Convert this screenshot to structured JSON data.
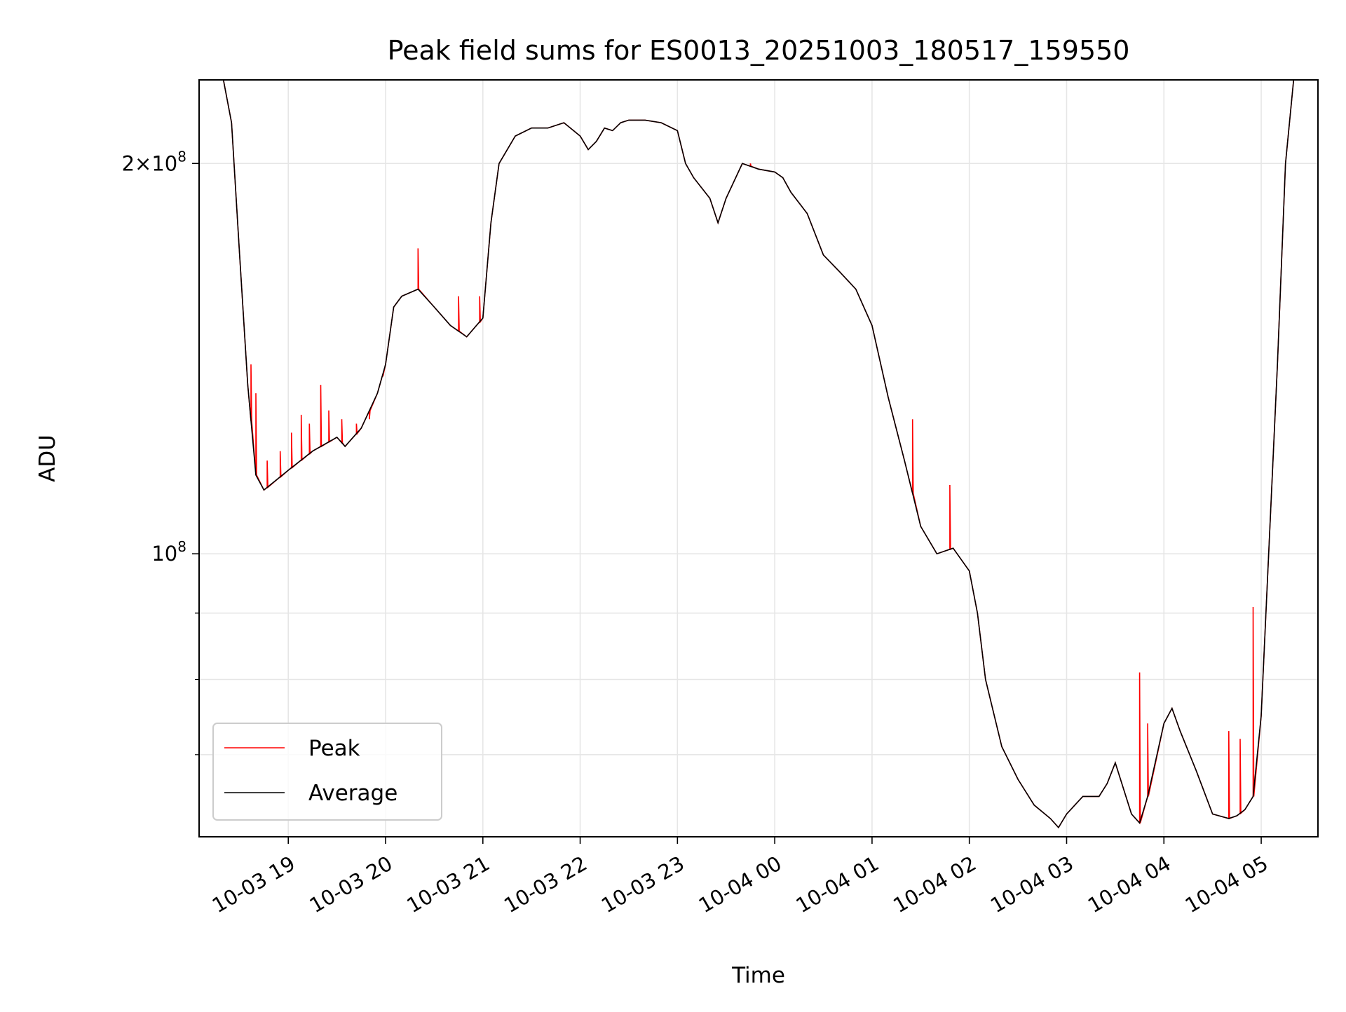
{
  "chart_data": {
    "type": "line",
    "title": "Peak field sums for ES0013_20251003_180517_159550",
    "xlabel": "Time",
    "ylabel": "ADU",
    "yscale": "log",
    "xlim": [
      "2025-10-03 18:05",
      "2025-10-04 05:35"
    ],
    "ylim": [
      60500000,
      232000000
    ],
    "grid": true,
    "legend_position": "lower-left",
    "x_ticks": [
      "2025-10-03 19:00",
      "2025-10-03 20:00",
      "2025-10-03 21:00",
      "2025-10-03 22:00",
      "2025-10-03 23:00",
      "2025-10-04 00:00",
      "2025-10-04 01:00",
      "2025-10-04 02:00",
      "2025-10-04 03:00",
      "2025-10-04 04:00",
      "2025-10-04 05:00"
    ],
    "x_tick_labels": [
      "10-03 19",
      "10-03 20",
      "10-03 21",
      "10-03 22",
      "10-03 23",
      "10-04 00",
      "10-04 01",
      "10-04 02",
      "10-04 03",
      "10-04 04",
      "10-04 05"
    ],
    "y_major_ticks": [
      100000000,
      200000000
    ],
    "y_tick_labels": [
      {
        "mantissa": "",
        "times": "",
        "base": "10",
        "exp": "8"
      },
      {
        "mantissa": "2",
        "times": "×",
        "base": "10",
        "exp": "8"
      }
    ],
    "y_minor_ticks": [
      60000000,
      70000000,
      80000000,
      90000000
    ],
    "series": [
      {
        "name": "Average",
        "color": "#000000",
        "x": [
          "2025-10-03 18:05",
          "2025-10-03 18:20",
          "2025-10-03 18:25",
          "2025-10-03 18:30",
          "2025-10-03 18:35",
          "2025-10-03 18:40",
          "2025-10-03 18:45",
          "2025-10-03 19:00",
          "2025-10-03 19:15",
          "2025-10-03 19:30",
          "2025-10-03 19:35",
          "2025-10-03 19:45",
          "2025-10-03 19:55",
          "2025-10-03 20:00",
          "2025-10-03 20:05",
          "2025-10-03 20:10",
          "2025-10-03 20:20",
          "2025-10-03 20:30",
          "2025-10-03 20:40",
          "2025-10-03 20:50",
          "2025-10-03 21:00",
          "2025-10-03 21:05",
          "2025-10-03 21:10",
          "2025-10-03 21:20",
          "2025-10-03 21:30",
          "2025-10-03 21:40",
          "2025-10-03 21:50",
          "2025-10-03 22:00",
          "2025-10-03 22:05",
          "2025-10-03 22:10",
          "2025-10-03 22:15",
          "2025-10-03 22:20",
          "2025-10-03 22:25",
          "2025-10-03 22:30",
          "2025-10-03 22:40",
          "2025-10-03 22:50",
          "2025-10-03 23:00",
          "2025-10-03 23:05",
          "2025-10-03 23:10",
          "2025-10-03 23:20",
          "2025-10-03 23:25",
          "2025-10-03 23:30",
          "2025-10-03 23:40",
          "2025-10-03 23:50",
          "2025-10-04 00:00",
          "2025-10-04 00:05",
          "2025-10-04 00:10",
          "2025-10-04 00:20",
          "2025-10-04 00:30",
          "2025-10-04 00:40",
          "2025-10-04 00:50",
          "2025-10-04 01:00",
          "2025-10-04 01:10",
          "2025-10-04 01:20",
          "2025-10-04 01:30",
          "2025-10-04 01:40",
          "2025-10-04 01:50",
          "2025-10-04 02:00",
          "2025-10-04 02:05",
          "2025-10-04 02:10",
          "2025-10-04 02:20",
          "2025-10-04 02:30",
          "2025-10-04 02:40",
          "2025-10-04 02:50",
          "2025-10-04 02:55",
          "2025-10-04 03:00",
          "2025-10-04 03:10",
          "2025-10-04 03:20",
          "2025-10-04 03:25",
          "2025-10-04 03:30",
          "2025-10-04 03:40",
          "2025-10-04 03:45",
          "2025-10-04 03:50",
          "2025-10-04 04:00",
          "2025-10-04 04:05",
          "2025-10-04 04:10",
          "2025-10-04 04:20",
          "2025-10-04 04:30",
          "2025-10-04 04:40",
          "2025-10-04 04:45",
          "2025-10-04 04:50",
          "2025-10-04 04:55",
          "2025-10-04 05:00",
          "2025-10-04 05:10",
          "2025-10-04 05:15",
          "2025-10-04 05:20",
          "2025-10-04 05:35"
        ],
        "values": [
          232000000,
          232000000,
          215000000,
          170000000,
          135000000,
          115000000,
          112000000,
          116000000,
          120000000,
          123000000,
          121000000,
          125000000,
          133000000,
          140000000,
          155000000,
          158000000,
          160000000,
          155000000,
          150000000,
          147000000,
          152000000,
          180000000,
          200000000,
          210000000,
          213000000,
          213000000,
          215000000,
          210000000,
          205000000,
          208000000,
          213000000,
          212000000,
          215000000,
          216000000,
          216000000,
          215000000,
          212000000,
          200000000,
          195000000,
          188000000,
          180000000,
          188000000,
          200000000,
          198000000,
          197000000,
          195000000,
          190000000,
          183000000,
          170000000,
          165000000,
          160000000,
          150000000,
          132000000,
          118000000,
          105000000,
          100000000,
          101000000,
          97000000,
          90000000,
          80000000,
          71000000,
          67000000,
          64000000,
          62500000,
          61500000,
          63000000,
          65000000,
          65000000,
          66500000,
          69000000,
          63000000,
          62000000,
          65000000,
          74000000,
          76000000,
          73000000,
          68000000,
          63000000,
          62500000,
          62800000,
          63500000,
          65000000,
          75000000,
          140000000,
          200000000,
          232000000,
          232000000
        ]
      },
      {
        "name": "Peak",
        "color": "#ff0000",
        "spikes": [
          {
            "x": "2025-10-03 18:37",
            "value": 140000000
          },
          {
            "x": "2025-10-03 18:40",
            "value": 133000000
          },
          {
            "x": "2025-10-03 18:47",
            "value": 118000000
          },
          {
            "x": "2025-10-03 18:55",
            "value": 120000000
          },
          {
            "x": "2025-10-03 19:02",
            "value": 124000000
          },
          {
            "x": "2025-10-03 19:08",
            "value": 128000000
          },
          {
            "x": "2025-10-03 19:13",
            "value": 126000000
          },
          {
            "x": "2025-10-03 19:20",
            "value": 135000000
          },
          {
            "x": "2025-10-03 19:25",
            "value": 129000000
          },
          {
            "x": "2025-10-03 19:33",
            "value": 127000000
          },
          {
            "x": "2025-10-03 19:42",
            "value": 126000000
          },
          {
            "x": "2025-10-03 19:50",
            "value": 127000000
          },
          {
            "x": "2025-10-03 19:58",
            "value": 137000000
          },
          {
            "x": "2025-10-03 20:20",
            "value": 172000000
          },
          {
            "x": "2025-10-03 20:45",
            "value": 158000000
          },
          {
            "x": "2025-10-03 20:58",
            "value": 158000000
          },
          {
            "x": "2025-10-03 23:45",
            "value": 200000000
          },
          {
            "x": "2025-10-04 01:25",
            "value": 127000000
          },
          {
            "x": "2025-10-04 01:48",
            "value": 113000000
          },
          {
            "x": "2025-10-04 03:45",
            "value": 81000000
          },
          {
            "x": "2025-10-04 03:50",
            "value": 74000000
          },
          {
            "x": "2025-10-04 04:40",
            "value": 73000000
          },
          {
            "x": "2025-10-04 04:47",
            "value": 72000000
          },
          {
            "x": "2025-10-04 04:55",
            "value": 91000000
          }
        ]
      }
    ],
    "legend": [
      {
        "label": "Peak",
        "color": "#ff0000"
      },
      {
        "label": "Average",
        "color": "#000000"
      }
    ]
  }
}
